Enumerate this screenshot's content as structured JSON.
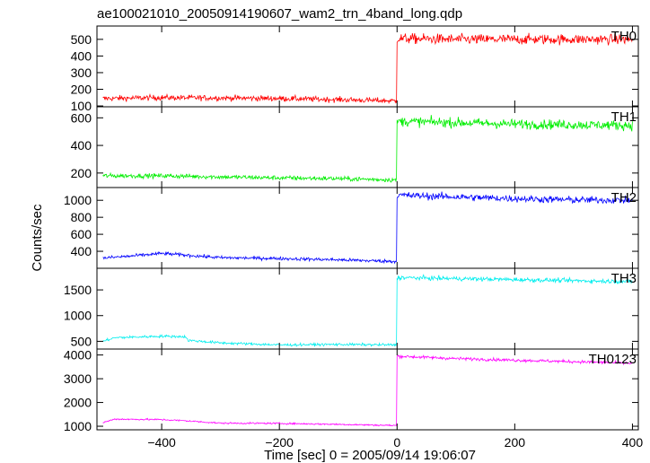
{
  "chart_data": {
    "type": "line",
    "title": "ae100021010_20050914190607_wam2_trn_4band_long.qdp",
    "xlabel": "Time [sec] 0 = 2005/09/14 19:06:07",
    "ylabel": "Counts/sec",
    "xlim": [
      -510,
      410
    ],
    "x_ticks": [
      -400,
      -200,
      0,
      200,
      400
    ],
    "x_tick_labels": [
      "−400",
      "−200",
      "0",
      "200",
      "400"
    ],
    "grid": false,
    "panels": [
      {
        "name": "TH0",
        "color": "#ff0000",
        "ylim": [
          95,
          580
        ],
        "y_ticks": [
          100,
          200,
          300,
          400,
          500
        ],
        "pre_level": [
          [
            -500,
            145
          ],
          [
            -400,
            150
          ],
          [
            -300,
            148
          ],
          [
            -200,
            145
          ],
          [
            -100,
            138
          ],
          [
            0,
            130
          ]
        ],
        "post_level": [
          [
            0,
            505
          ],
          [
            100,
            500
          ],
          [
            200,
            500
          ],
          [
            300,
            500
          ],
          [
            400,
            500
          ]
        ],
        "noise_pre": 12,
        "noise_post": 22
      },
      {
        "name": "TH1",
        "color": "#00ee00",
        "ylim": [
          95,
          680
        ],
        "y_ticks": [
          200,
          400,
          600
        ],
        "pre_level": [
          [
            -500,
            180
          ],
          [
            -400,
            180
          ],
          [
            -300,
            172
          ],
          [
            -200,
            165
          ],
          [
            -100,
            160
          ],
          [
            0,
            150
          ]
        ],
        "post_level": [
          [
            0,
            575
          ],
          [
            100,
            565
          ],
          [
            200,
            555
          ],
          [
            300,
            550
          ],
          [
            400,
            545
          ]
        ],
        "noise_pre": 12,
        "noise_post": 25
      },
      {
        "name": "TH2",
        "color": "#0000ff",
        "ylim": [
          200,
          1150
        ],
        "y_ticks": [
          400,
          600,
          800,
          1000
        ],
        "pre_level": [
          [
            -500,
            320
          ],
          [
            -450,
            345
          ],
          [
            -400,
            375
          ],
          [
            -350,
            350
          ],
          [
            -300,
            325
          ],
          [
            -200,
            315
          ],
          [
            -100,
            300
          ],
          [
            0,
            280
          ]
        ],
        "post_level": [
          [
            0,
            1060
          ],
          [
            100,
            1040
          ],
          [
            200,
            1020
          ],
          [
            300,
            1005
          ],
          [
            400,
            1000
          ]
        ],
        "noise_pre": 14,
        "noise_post": 30
      },
      {
        "name": "TH3",
        "color": "#00eeee",
        "ylim": [
          350,
          1920
        ],
        "y_ticks": [
          500,
          1000,
          1500
        ],
        "pre_level": [
          [
            -500,
            500
          ],
          [
            -480,
            570
          ],
          [
            -400,
            600
          ],
          [
            -360,
            590
          ],
          [
            -355,
            520
          ],
          [
            -300,
            470
          ],
          [
            -200,
            430
          ],
          [
            -100,
            440
          ],
          [
            0,
            430
          ]
        ],
        "post_level": [
          [
            0,
            1740
          ],
          [
            100,
            1720
          ],
          [
            200,
            1700
          ],
          [
            300,
            1680
          ],
          [
            400,
            1660
          ]
        ],
        "noise_pre": 18,
        "noise_post": 30
      },
      {
        "name": "TH0123",
        "color": "#ff00ff",
        "ylim": [
          850,
          4250
        ],
        "y_ticks": [
          1000,
          2000,
          3000,
          4000
        ],
        "pre_level": [
          [
            -500,
            1150
          ],
          [
            -480,
            1300
          ],
          [
            -400,
            1280
          ],
          [
            -360,
            1230
          ],
          [
            -300,
            1130
          ],
          [
            -200,
            1120
          ],
          [
            -100,
            1080
          ],
          [
            0,
            1030
          ]
        ],
        "post_level": [
          [
            0,
            3950
          ],
          [
            100,
            3850
          ],
          [
            200,
            3780
          ],
          [
            300,
            3720
          ],
          [
            400,
            3650
          ]
        ],
        "noise_pre": 25,
        "noise_post": 45
      }
    ]
  }
}
